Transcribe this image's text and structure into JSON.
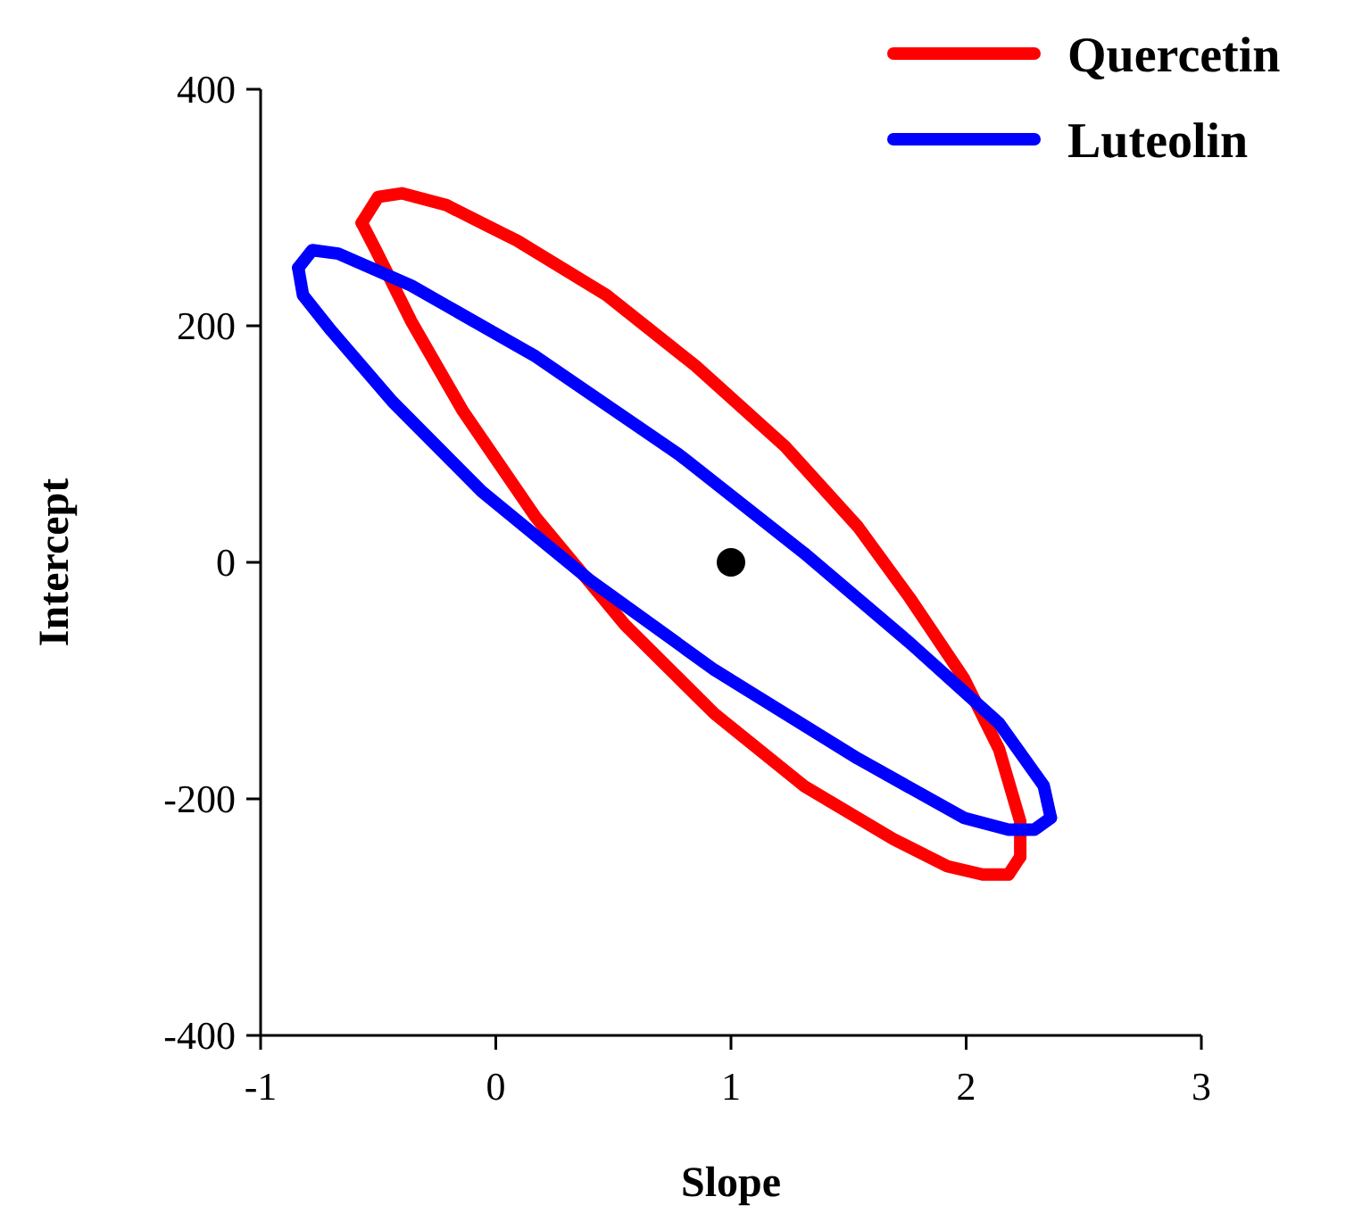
{
  "chart_data": {
    "type": "line",
    "xlabel": "Slope",
    "ylabel": "Intercept",
    "xlim": [
      -1,
      3
    ],
    "ylim": [
      -400,
      400
    ],
    "xticks": [
      -1,
      0,
      1,
      2,
      3
    ],
    "yticks": [
      -400,
      -200,
      0,
      200,
      400
    ],
    "legend": "top right",
    "grid": false,
    "marker": "none",
    "line_style": "solid",
    "series": [
      {
        "name": "Quercetin",
        "color": "#ff0000",
        "x": [
          -0.57,
          -0.5,
          -0.4,
          -0.21,
          0.09,
          0.47,
          0.85,
          1.23,
          1.54,
          1.76,
          1.99,
          2.14,
          2.23,
          2.23
        ],
        "values": [
          287,
          309,
          312,
          302,
          272,
          226,
          166,
          98,
          30,
          -30,
          -98,
          -158,
          -219,
          -249
        ]
      },
      {
        "color": "#ff0000",
        "x": [
          -0.57,
          -0.51,
          -0.36,
          -0.14,
          0.17,
          0.55,
          0.93,
          1.31,
          1.69,
          1.92,
          2.07,
          2.18,
          2.23
        ],
        "values": [
          287,
          264,
          204,
          128,
          38,
          -53,
          -128,
          -189,
          -234,
          -257,
          -264,
          -264,
          -249
        ]
      },
      {
        "name": "Luteolin",
        "color": "#0000ff",
        "x": [
          -0.84,
          -0.78,
          -0.67,
          -0.36,
          0.17,
          0.78,
          1.31,
          1.76,
          2.14,
          2.33,
          2.36
        ],
        "values": [
          249,
          264,
          261,
          234,
          174,
          91,
          8,
          -68,
          -136,
          -189,
          -216
        ]
      },
      {
        "color": "#0000ff",
        "x": [
          -0.84,
          -0.82,
          -0.7,
          -0.44,
          -0.06,
          0.4,
          0.93,
          1.54,
          1.99,
          2.18,
          2.29,
          2.36
        ],
        "values": [
          249,
          226,
          196,
          136,
          60,
          -15,
          -91,
          -166,
          -216,
          -226,
          -226,
          -216
        ]
      },
      {
        "type": "scatter",
        "marker": "circle",
        "color": "#000000",
        "x": [
          1
        ],
        "values": [
          0
        ]
      }
    ]
  }
}
